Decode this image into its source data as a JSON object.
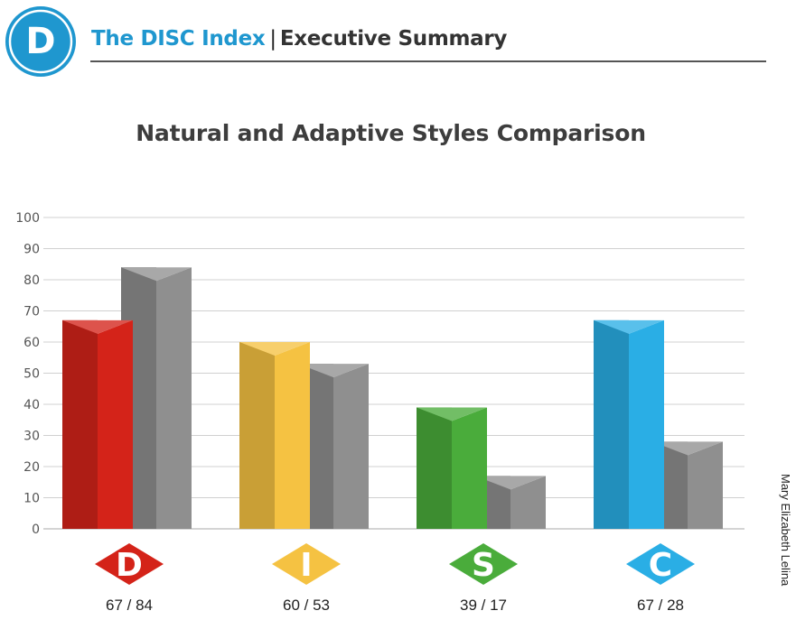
{
  "header": {
    "logo_letter": "D",
    "brand": "The DISC Index",
    "section": "Executive Summary",
    "accent_color": "#1f97cf"
  },
  "side_label": "Mary Elizabeth Lelina",
  "chart_data": {
    "type": "bar",
    "title": "Natural and Adaptive Styles Comparison",
    "xlabel": "",
    "ylabel": "",
    "ylim": [
      0,
      100
    ],
    "yticks": [
      0,
      10,
      20,
      30,
      40,
      50,
      60,
      70,
      80,
      90,
      100
    ],
    "grid": true,
    "categories": [
      "D",
      "I",
      "S",
      "C"
    ],
    "series": [
      {
        "values": [
          67,
          60,
          39,
          67
        ]
      },
      {
        "values": [
          84,
          53,
          17,
          28
        ]
      }
    ],
    "value_labels": [
      "67 / 84",
      "60 / 53",
      "39 / 17",
      "67 / 28"
    ],
    "colors": {
      "D": "#d42319",
      "I": "#f5c242",
      "S": "#4aac3b",
      "C": "#2aaee5",
      "adaptive": "#8f8f8f"
    }
  }
}
